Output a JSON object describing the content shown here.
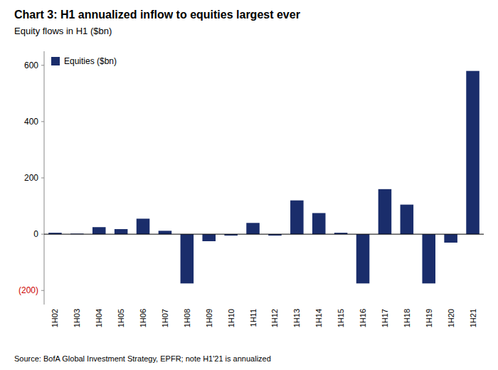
{
  "chart_data": {
    "type": "bar",
    "title": "Chart 3: H1 annualized inflow to equities largest ever",
    "subtitle": "Equity flows in H1 ($bn)",
    "categories": [
      "1H02",
      "1H03",
      "1H04",
      "1H05",
      "1H06",
      "1H07",
      "1H08",
      "1H09",
      "1H10",
      "1H11",
      "1H12",
      "1H13",
      "1H14",
      "1H15",
      "1H16",
      "1H17",
      "1H18",
      "1H19",
      "1H20",
      "1H21"
    ],
    "series": [
      {
        "name": "Equities ($bn)",
        "color": "#1a2d6b",
        "values": [
          5,
          2,
          25,
          18,
          55,
          12,
          -175,
          -25,
          -5,
          40,
          -5,
          120,
          75,
          5,
          -175,
          160,
          105,
          -175,
          -30,
          580
        ]
      }
    ],
    "ylim": [
      -250,
      650
    ],
    "yticks": [
      {
        "value": -200,
        "label": "(200)"
      },
      0,
      200,
      400,
      600
    ],
    "grid": false,
    "legend": "upper left",
    "annotations": [
      "Source: BofA Global Investment Strategy, EPFR; note H1'21 is annualized"
    ]
  }
}
